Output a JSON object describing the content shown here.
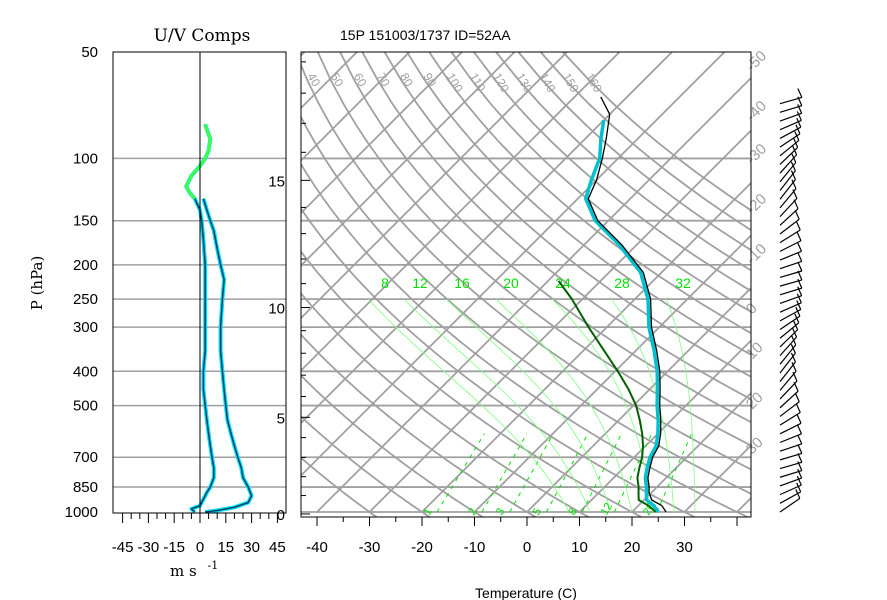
{
  "title": "15P 151003/1737 ID=52AA",
  "uv_panel": {
    "title": "U/V Comps",
    "ylabel": "P (hPa)",
    "xlabel": "m s",
    "xlabel_exp": "-1",
    "pressure_ticks": [
      50,
      100,
      150,
      200,
      250,
      300,
      400,
      500,
      700,
      850,
      1000
    ],
    "xticks": [
      -45,
      -30,
      -15,
      0,
      15,
      30,
      45
    ],
    "xlim": [
      -50,
      50
    ]
  },
  "skewt_panel": {
    "xlabel": "Temperature (C)",
    "xticks": [
      -40,
      -30,
      -20,
      -10,
      0,
      10,
      20,
      30
    ],
    "xlim": [
      -45,
      40
    ],
    "height_ticks": [
      0,
      5,
      10,
      15
    ],
    "isotherm_labels": [
      -50,
      -40,
      -30,
      -20,
      -10,
      0,
      10,
      20,
      30,
      40,
      50
    ],
    "dry_adiabat_labels": [
      40,
      50,
      60,
      70,
      80,
      90,
      100,
      110,
      120,
      130,
      140,
      150,
      160
    ],
    "mixing_ratio_labels": [
      1,
      2,
      3,
      5,
      8,
      12,
      20
    ],
    "moist_adiabat_labels": [
      8,
      12,
      16,
      20,
      24,
      28,
      32
    ],
    "label_colors": {
      "grid": "#a0a0a0",
      "moist": "#00e000",
      "temperature": "#000000",
      "dewpoint": "#00b0b0",
      "parcel": "#006000"
    }
  },
  "chart_data": {
    "type": "line",
    "title": "15P 151003/1737 ID=52AA",
    "temperature_profile": {
      "x_label": "Temperature (C)",
      "y_label": "P (hPa)",
      "points": [
        [
          26.5,
          1000
        ],
        [
          24.5,
          960
        ],
        [
          21.5,
          925
        ],
        [
          19.5,
          880
        ],
        [
          18.5,
          850
        ],
        [
          16.5,
          800
        ],
        [
          15.0,
          750
        ],
        [
          13.5,
          700
        ],
        [
          12.5,
          650
        ],
        [
          10.5,
          600
        ],
        [
          8.0,
          550
        ],
        [
          5.0,
          500
        ],
        [
          2.0,
          450
        ],
        [
          -1.5,
          400
        ],
        [
          -6.0,
          350
        ],
        [
          -11.5,
          300
        ],
        [
          -17.0,
          250
        ],
        [
          -23.5,
          210
        ],
        [
          -33.0,
          175
        ],
        [
          -42.0,
          150
        ],
        [
          -48.0,
          130
        ],
        [
          -50.0,
          115
        ],
        [
          -53.0,
          100
        ],
        [
          -56.0,
          88
        ],
        [
          -60.0,
          75
        ],
        [
          -65.0,
          67
        ]
      ]
    },
    "dewpoint_profile": {
      "points": [
        [
          25.0,
          1000
        ],
        [
          23.0,
          960
        ],
        [
          20.5,
          925
        ],
        [
          19.0,
          880
        ],
        [
          18.0,
          850
        ],
        [
          16.0,
          800
        ],
        [
          14.5,
          750
        ],
        [
          13.0,
          700
        ],
        [
          12.0,
          650
        ],
        [
          10.0,
          600
        ],
        [
          7.5,
          550
        ],
        [
          4.5,
          500
        ],
        [
          1.5,
          450
        ],
        [
          -2.0,
          400
        ],
        [
          -6.5,
          350
        ],
        [
          -12.0,
          300
        ],
        [
          -17.5,
          250
        ],
        [
          -24.0,
          210
        ],
        [
          -33.5,
          175
        ],
        [
          -42.5,
          150
        ],
        [
          -48.5,
          130
        ],
        [
          -51.0,
          115
        ],
        [
          -53.5,
          100
        ],
        [
          -57.0,
          88
        ],
        [
          -60.0,
          78
        ]
      ]
    },
    "parcel_path": {
      "points": [
        [
          24.5,
          1000
        ],
        [
          22.0,
          960
        ],
        [
          19.0,
          925
        ],
        [
          17.5,
          880
        ],
        [
          16.5,
          850
        ],
        [
          14.5,
          800
        ],
        [
          13.0,
          750
        ],
        [
          11.5,
          700
        ],
        [
          9.5,
          650
        ],
        [
          7.0,
          600
        ],
        [
          4.0,
          550
        ],
        [
          0.5,
          500
        ],
        [
          -4.0,
          450
        ],
        [
          -9.5,
          400
        ],
        [
          -16.0,
          350
        ],
        [
          -23.5,
          300
        ],
        [
          -32.0,
          250
        ],
        [
          -38.0,
          222
        ]
      ]
    },
    "u_component": {
      "points": [
        [
          -3,
          1000
        ],
        [
          -5,
          980
        ],
        [
          0,
          960
        ],
        [
          2,
          920
        ],
        [
          4,
          880
        ],
        [
          6,
          850
        ],
        [
          8,
          800
        ],
        [
          8,
          750
        ],
        [
          7,
          700
        ],
        [
          6,
          650
        ],
        [
          5,
          600
        ],
        [
          4,
          550
        ],
        [
          3,
          500
        ],
        [
          2,
          450
        ],
        [
          2,
          400
        ],
        [
          3,
          350
        ],
        [
          3,
          300
        ],
        [
          3,
          250
        ],
        [
          3,
          200
        ],
        [
          2,
          170
        ],
        [
          1,
          150
        ],
        [
          0,
          140
        ],
        [
          -3,
          130
        ],
        [
          -6,
          125
        ],
        [
          -8,
          120
        ],
        [
          -5,
          112
        ],
        [
          0,
          105
        ],
        [
          3,
          100
        ],
        [
          5,
          95
        ],
        [
          6,
          88
        ],
        [
          4,
          83
        ],
        [
          3,
          80
        ]
      ]
    },
    "v_component": {
      "points": [
        [
          3,
          1000
        ],
        [
          10,
          990
        ],
        [
          20,
          970
        ],
        [
          28,
          940
        ],
        [
          30,
          900
        ],
        [
          28,
          850
        ],
        [
          25,
          800
        ],
        [
          24,
          750
        ],
        [
          22,
          700
        ],
        [
          20,
          650
        ],
        [
          18,
          600
        ],
        [
          16,
          550
        ],
        [
          15,
          500
        ],
        [
          14,
          450
        ],
        [
          13,
          400
        ],
        [
          12,
          350
        ],
        [
          12,
          300
        ],
        [
          13,
          250
        ],
        [
          14,
          220
        ],
        [
          12,
          200
        ],
        [
          10,
          180
        ],
        [
          8,
          160
        ],
        [
          6,
          150
        ],
        [
          4,
          140
        ],
        [
          2,
          130
        ]
      ]
    }
  }
}
